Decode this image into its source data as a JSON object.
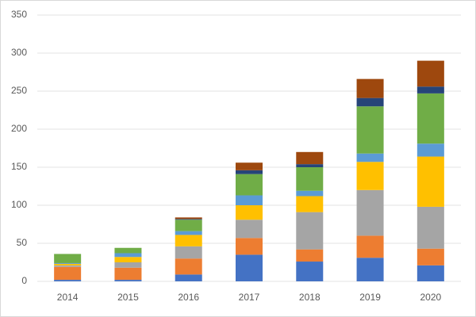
{
  "chart_data": {
    "type": "stacked_bar",
    "categories": [
      "2014",
      "2015",
      "2016",
      "2017",
      "2018",
      "2019",
      "2020"
    ],
    "series": [
      {
        "color": "#4472c4",
        "values": [
          2,
          2,
          9,
          35,
          26,
          31,
          21
        ]
      },
      {
        "color": "#ed7d31",
        "values": [
          17,
          16,
          21,
          22,
          16,
          29,
          22
        ]
      },
      {
        "color": "#a5a5a5",
        "values": [
          2,
          7,
          16,
          24,
          49,
          60,
          55
        ]
      },
      {
        "color": "#ffc000",
        "values": [
          2,
          7,
          15,
          19,
          21,
          37,
          66
        ]
      },
      {
        "color": "#5b9bd5",
        "values": [
          1,
          5,
          5,
          13,
          7,
          11,
          17
        ]
      },
      {
        "color": "#70ad47",
        "values": [
          12,
          7,
          15,
          28,
          31,
          62,
          66
        ]
      },
      {
        "color": "#264478",
        "values": [
          0,
          0,
          1,
          5,
          4,
          11,
          9
        ]
      },
      {
        "color": "#9e480e",
        "values": [
          0,
          0,
          2,
          10,
          16,
          25,
          34
        ]
      }
    ],
    "ylim": [
      0,
      350
    ],
    "yticks": [
      0,
      50,
      100,
      150,
      200,
      250,
      300,
      350
    ],
    "grid": true
  }
}
